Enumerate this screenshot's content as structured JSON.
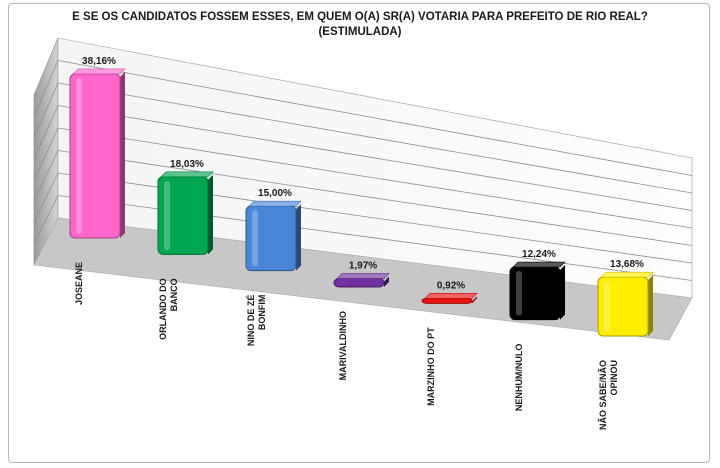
{
  "chart_data": {
    "type": "bar",
    "title": "E SE OS CANDIDATOS FOSSEM ESSES, EM QUEM O(A) SR(A) VOTARIA PARA PREFEITO DE RIO REAL?",
    "subtitle": "(ESTIMULADA)",
    "categories": [
      "JOSEANE",
      "ORLANDO DO BANCO",
      "NINO DE ZÉ BONFIM",
      "MARIVALDINHO",
      "MARZINHO DO PT",
      "NENHUM/NULO",
      "NÃO SABE/NÃO OPINOU"
    ],
    "category_lines": [
      [
        "JOSEANE"
      ],
      [
        "ORLANDO DO",
        "BANCO"
      ],
      [
        "NINO DE ZÉ",
        "BONFIM"
      ],
      [
        "MARIVALDINHO"
      ],
      [
        "MARZINHO DO PT"
      ],
      [
        "NENHUM/NULO"
      ],
      [
        "NÃO SABE/NÃO",
        "OPINOU"
      ]
    ],
    "values": [
      38.16,
      18.03,
      15.0,
      1.97,
      0.92,
      12.24,
      13.68
    ],
    "data_labels": [
      "38,16%",
      "18,03%",
      "15,00%",
      "1,97%",
      "0,92%",
      "12,24%",
      "13,68%"
    ],
    "colors": [
      "#ff66cc",
      "#00a650",
      "#4a86d8",
      "#7030a0",
      "#ee1111",
      "#000000",
      "#ffee00"
    ],
    "ylim": [
      0,
      40
    ],
    "grid": true,
    "legend": "none"
  }
}
